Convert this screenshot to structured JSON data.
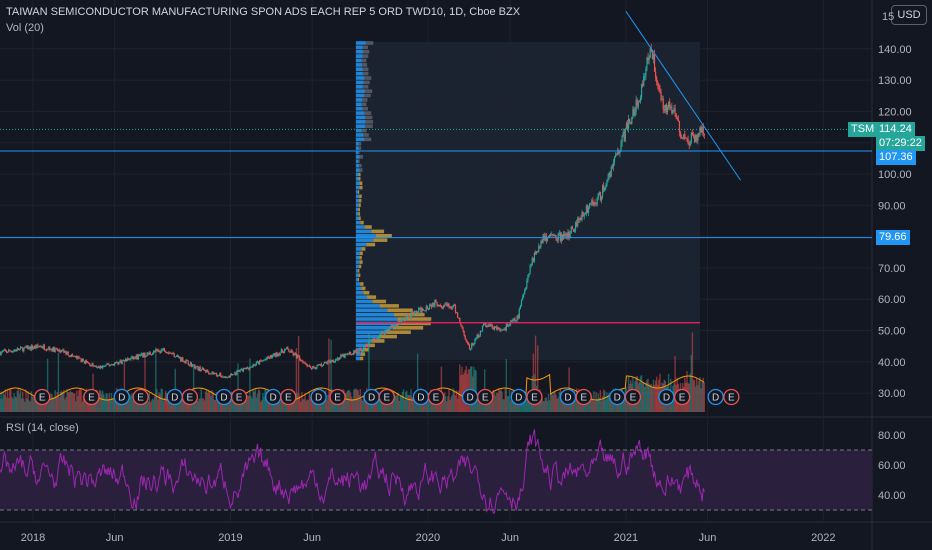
{
  "header": {
    "title": "TAIWAN SEMICONDUCTOR MANUFACTURING SPON ADS EACH REP 5 ORD TWD10, 1D, Cboe BZX",
    "volume_label": "Vol (20)",
    "currency_button": "USD",
    "currency_stub": "15"
  },
  "rsi_panel": {
    "label": "RSI (14, close)"
  },
  "price_tags": {
    "ticker": "TSM",
    "last_price": "114.24",
    "countdown": "07:29:22",
    "level_1": "107.36",
    "level_2": "79.66"
  },
  "colors": {
    "background": "#131722",
    "up": "#26a69a",
    "down": "#ef5350",
    "horizontal_line": "#2962ff",
    "trendline": "#2196f3",
    "poc_line": "#e91e63",
    "rsi_line": "#9c27b0",
    "rsi_band": "#2a1f3d",
    "vp_up": "#2196f3",
    "vp_down": "#c49a3c"
  },
  "chart_data": [
    {
      "type": "candlestick",
      "name": "price",
      "xlim": [
        "2017-11-01",
        "2022-04-01"
      ],
      "ylim": [
        25,
        150
      ],
      "y_ticks": [
        "30.00",
        "40.00",
        "50.00",
        "60.00",
        "70.00",
        "80.00",
        "90.00",
        "100.00",
        "110.00",
        "120.00",
        "130.00",
        "140.00"
      ],
      "x_ticks": [
        {
          "date": "2018-01-01",
          "label": "2018"
        },
        {
          "date": "2018-06-01",
          "label": "Jun"
        },
        {
          "date": "2019-01-01",
          "label": "2019"
        },
        {
          "date": "2019-06-01",
          "label": "Jun"
        },
        {
          "date": "2020-01-01",
          "label": "2020"
        },
        {
          "date": "2020-06-01",
          "label": "Jun"
        },
        {
          "date": "2021-01-01",
          "label": "2021"
        },
        {
          "date": "2021-06-01",
          "label": "Jun"
        },
        {
          "date": "2022-01-01",
          "label": "2022"
        }
      ],
      "close_path": [
        [
          "2017-11-01",
          43
        ],
        [
          "2018-01-15",
          45
        ],
        [
          "2018-03-01",
          43
        ],
        [
          "2018-05-01",
          38
        ],
        [
          "2018-07-01",
          41
        ],
        [
          "2018-09-01",
          44
        ],
        [
          "2018-11-01",
          38
        ],
        [
          "2018-12-24",
          35
        ],
        [
          "2019-02-01",
          38
        ],
        [
          "2019-04-15",
          44
        ],
        [
          "2019-06-01",
          38
        ],
        [
          "2019-08-01",
          42
        ],
        [
          "2019-09-01",
          44
        ],
        [
          "2019-10-15",
          50
        ],
        [
          "2019-12-01",
          55
        ],
        [
          "2020-01-15",
          59
        ],
        [
          "2020-02-20",
          57
        ],
        [
          "2020-03-18",
          44
        ],
        [
          "2020-04-15",
          52
        ],
        [
          "2020-05-15",
          50
        ],
        [
          "2020-06-15",
          54
        ],
        [
          "2020-07-10",
          72
        ],
        [
          "2020-08-01",
          80
        ],
        [
          "2020-09-15",
          80
        ],
        [
          "2020-10-15",
          88
        ],
        [
          "2020-11-15",
          93
        ],
        [
          "2020-12-15",
          106
        ],
        [
          "2021-01-10",
          118
        ],
        [
          "2021-01-25",
          124
        ],
        [
          "2021-02-16",
          141
        ],
        [
          "2021-03-08",
          123
        ],
        [
          "2021-03-30",
          120
        ],
        [
          "2021-04-20",
          110
        ],
        [
          "2021-05-10",
          112
        ],
        [
          "2021-05-26",
          114.24
        ]
      ],
      "horizontal_levels": [
        107.36,
        79.66,
        114.24
      ],
      "poc_level": 52.5,
      "trendline": [
        [
          "2021-01-01",
          152
        ],
        [
          "2021-08-01",
          98
        ]
      ]
    },
    {
      "type": "bar",
      "name": "Vol (20)",
      "note": "volume histogram at bottom of price pane with moving average overlay",
      "earnings_markers": [
        "2018-01-18",
        "2018-04-19",
        "2018-07-19",
        "2018-10-18",
        "2019-01-17",
        "2019-04-18",
        "2019-07-18",
        "2019-10-17",
        "2020-01-16",
        "2020-04-16",
        "2020-07-16",
        "2020-10-15",
        "2021-01-14",
        "2021-04-15",
        "2021-07-15"
      ],
      "dividend_markers": [
        "2018-06-14",
        "2018-09-20",
        "2018-12-20",
        "2019-03-21",
        "2019-06-13",
        "2019-09-19",
        "2019-12-19",
        "2020-03-19",
        "2020-06-17",
        "2020-09-16",
        "2020-12-16",
        "2021-03-17",
        "2021-06-16"
      ]
    },
    {
      "type": "line",
      "name": "RSI (14, close)",
      "ylim": [
        27,
        90
      ],
      "y_ticks": [
        "40.00",
        "60.00",
        "80.00"
      ],
      "bands": [
        30,
        70
      ],
      "x_range": [
        "2017-11-01",
        "2021-05-26"
      ]
    }
  ]
}
